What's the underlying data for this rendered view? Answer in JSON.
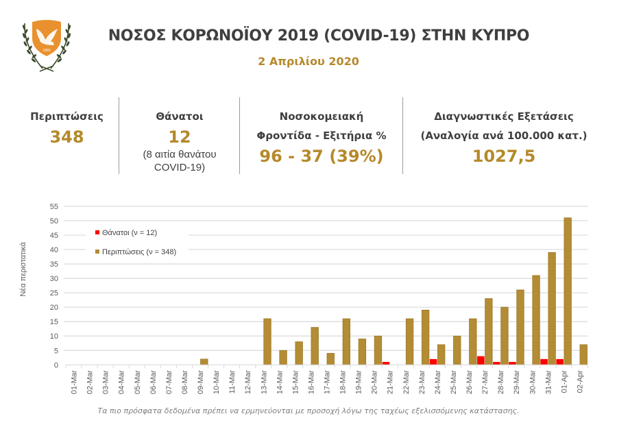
{
  "header": {
    "title": "ΝΟΣΟΣ ΚΟΡΩΝΟΪΟΥ 2019 (COVID-19) ΣΤΗΝ ΚΥΠΡΟ",
    "date": "2 Απριλίου 2020",
    "logo_icon": "cyprus-coat-of-arms",
    "logo_year": "1960"
  },
  "stats": {
    "cases": {
      "label": "Περιπτώσεις",
      "value": "348"
    },
    "deaths": {
      "label": "Θάνατοι",
      "value": "12",
      "note_line1": "(8 αιτία θανάτου",
      "note_line2": "COVID-19)"
    },
    "hospital": {
      "label_line1": "Νοσοκομειακή",
      "label_line2": "Φροντίδα - Εξιτήρια %",
      "value": "96 - 37 (39%)"
    },
    "tests": {
      "label_line1": "Διαγνωστικές Εξετάσεις",
      "label_line2": "(Αναλογία ανά 100.000 κατ.)",
      "value": "1027,5"
    }
  },
  "colors": {
    "accent_gold": "#b5892b",
    "cases_bar": "#b38c34",
    "deaths_bar": "#ff0000",
    "title_text": "#3f3f3f"
  },
  "footnote": "Τα πιο πρόσφατα δεδομένα πρέπει να ερμηνεύονται με προσοχή λόγω της ταχέως εξελισσόμενης κατάστασης.",
  "chart_data": {
    "type": "bar",
    "title": "",
    "xlabel": "",
    "ylabel": "Νέα περιστατικά",
    "ylim": [
      0,
      55
    ],
    "yticks": [
      0,
      5,
      10,
      15,
      20,
      25,
      30,
      35,
      40,
      45,
      50,
      55
    ],
    "grid": true,
    "legend_position": "top-left",
    "categories": [
      "01-Mar",
      "02-Mar",
      "03-Mar",
      "04-Mar",
      "05-Mar",
      "06-Mar",
      "07-Mar",
      "08-Mar",
      "09-Mar",
      "10-Mar",
      "11-Mar",
      "12-Mar",
      "13-Mar",
      "14-Mar",
      "15-Mar",
      "16-Mar",
      "17-Mar",
      "18-Mar",
      "19-Mar",
      "20-Mar",
      "21-Mar",
      "22-Mar",
      "23-Mar",
      "24-Mar",
      "25-Mar",
      "26-Mar",
      "27-Mar",
      "28-Mar",
      "29-Mar",
      "30-Mar",
      "31-Mar",
      "01-Apr",
      "02-Apr"
    ],
    "series": [
      {
        "name": "Θάνατοι (ν = 12)",
        "color": "#ff0000",
        "values": [
          0,
          0,
          0,
          0,
          0,
          0,
          0,
          0,
          0,
          0,
          0,
          0,
          0,
          0,
          0,
          0,
          0,
          0,
          0,
          0,
          1,
          0,
          0,
          2,
          0,
          0,
          3,
          1,
          1,
          0,
          2,
          2,
          0
        ]
      },
      {
        "name": "Περιπτώσεις (ν = 348)",
        "color": "#b38c34",
        "values": [
          0,
          0,
          0,
          0,
          0,
          0,
          0,
          0,
          2,
          0,
          0,
          0,
          16,
          5,
          8,
          13,
          4,
          16,
          9,
          10,
          0,
          16,
          19,
          7,
          10,
          16,
          23,
          20,
          26,
          31,
          39,
          51,
          7
        ]
      }
    ]
  }
}
